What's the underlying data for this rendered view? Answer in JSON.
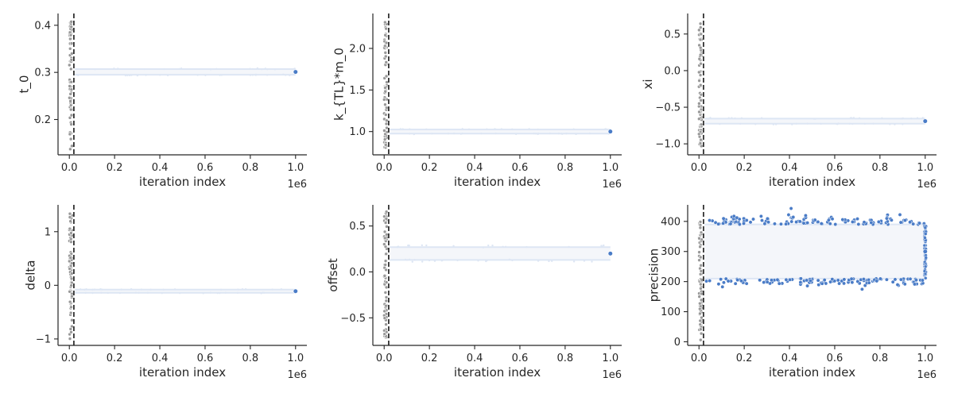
{
  "colors": {
    "chain": "#4a7cc7",
    "chain_light": "#dde6f4",
    "chain_fill": "#f4f6fa",
    "burnin": "#999999",
    "cutoff_line": "#1a1a1a",
    "axis": "#262626"
  },
  "chart_data": [
    {
      "type": "scatter",
      "xlabel": "iteration index",
      "ylabel": "t_0",
      "x_offset_label": "1e6",
      "xlim": [
        -0.05,
        1.05
      ],
      "ylim": [
        0.125,
        0.425
      ],
      "xticks": [
        0.0,
        0.2,
        0.4,
        0.6,
        0.8,
        1.0
      ],
      "xtick_labels": [
        "0.0",
        "0.2",
        "0.4",
        "0.6",
        "0.8",
        "1.0"
      ],
      "yticks": [
        0.2,
        0.3,
        0.4
      ],
      "ytick_labels": [
        "0.2",
        "0.3",
        "0.4"
      ],
      "burnin_cutoff": 0.02,
      "burnin_range": [
        0.135,
        0.41
      ],
      "chain_center": 0.301,
      "chain_halfwidth": 0.006,
      "chain_outliers": [
        0.293,
        0.309
      ],
      "last_point": 0.301
    },
    {
      "type": "scatter",
      "xlabel": "iteration index",
      "ylabel": "k_{TL}*m_0",
      "x_offset_label": "1e6",
      "xlim": [
        -0.05,
        1.05
      ],
      "ylim": [
        0.72,
        2.42
      ],
      "xticks": [
        0.0,
        0.2,
        0.4,
        0.6,
        0.8,
        1.0
      ],
      "xtick_labels": [
        "0.0",
        "0.2",
        "0.4",
        "0.6",
        "0.8",
        "1.0"
      ],
      "yticks": [
        1.0,
        1.5,
        2.0
      ],
      "ytick_labels": [
        "1.0",
        "1.5",
        "2.0"
      ],
      "burnin_cutoff": 0.02,
      "burnin_range": [
        0.8,
        2.35
      ],
      "chain_center": 1.0,
      "chain_halfwidth": 0.025,
      "chain_outliers": [
        0.97,
        1.03
      ],
      "last_point": 1.0
    },
    {
      "type": "scatter",
      "xlabel": "iteration index",
      "ylabel": "xi",
      "x_offset_label": "1e6",
      "xlim": [
        -0.05,
        1.05
      ],
      "ylim": [
        -1.15,
        0.78
      ],
      "xticks": [
        0.0,
        0.2,
        0.4,
        0.6,
        0.8,
        1.0
      ],
      "xtick_labels": [
        "0.0",
        "0.2",
        "0.4",
        "0.6",
        "0.8",
        "1.0"
      ],
      "yticks": [
        -1.0,
        -0.5,
        0.0,
        0.5
      ],
      "ytick_labels": [
        "−1.0",
        "−0.5",
        "0.0",
        "0.5"
      ],
      "burnin_cutoff": 0.02,
      "burnin_range": [
        -1.05,
        0.7
      ],
      "chain_center": -0.69,
      "chain_halfwidth": 0.035,
      "chain_outliers": [
        -0.73,
        -0.65
      ],
      "last_point": -0.69
    },
    {
      "type": "scatter",
      "xlabel": "iteration index",
      "ylabel": "delta",
      "x_offset_label": "1e6",
      "xlim": [
        -0.05,
        1.05
      ],
      "ylim": [
        -1.12,
        1.5
      ],
      "xticks": [
        0.0,
        0.2,
        0.4,
        0.6,
        0.8,
        1.0
      ],
      "xtick_labels": [
        "0.0",
        "0.2",
        "0.4",
        "0.6",
        "0.8",
        "1.0"
      ],
      "yticks": [
        -1,
        0,
        1
      ],
      "ytick_labels": [
        "−1",
        "0",
        "1"
      ],
      "burnin_cutoff": 0.02,
      "burnin_range": [
        -1.0,
        1.4
      ],
      "chain_center": -0.11,
      "chain_halfwidth": 0.03,
      "chain_outliers": [
        -0.15,
        -0.07
      ],
      "last_point": -0.11
    },
    {
      "type": "scatter",
      "xlabel": "iteration index",
      "ylabel": "offset",
      "x_offset_label": "1e6",
      "xlim": [
        -0.05,
        1.05
      ],
      "ylim": [
        -0.8,
        0.73
      ],
      "xticks": [
        0.0,
        0.2,
        0.4,
        0.6,
        0.8,
        1.0
      ],
      "xtick_labels": [
        "0.0",
        "0.2",
        "0.4",
        "0.6",
        "0.8",
        "1.0"
      ],
      "yticks": [
        -0.5,
        0.0,
        0.5
      ],
      "ytick_labels": [
        "−0.5",
        "0.0",
        "0.5"
      ],
      "burnin_cutoff": 0.02,
      "burnin_range": [
        -0.72,
        0.68
      ],
      "chain_center": 0.2,
      "chain_halfwidth": 0.07,
      "chain_outliers": [
        0.12,
        0.29
      ],
      "last_point": 0.2
    },
    {
      "type": "scatter",
      "xlabel": "iteration index",
      "ylabel": "precision",
      "x_offset_label": "1e6",
      "xlim": [
        -0.05,
        1.05
      ],
      "ylim": [
        -12,
        455
      ],
      "xticks": [
        0.0,
        0.2,
        0.4,
        0.6,
        0.8,
        1.0
      ],
      "xtick_labels": [
        "0.0",
        "0.2",
        "0.4",
        "0.6",
        "0.8",
        "1.0"
      ],
      "yticks": [
        0,
        100,
        200,
        300,
        400
      ],
      "ytick_labels": [
        "0",
        "100",
        "200",
        "300",
        "400"
      ],
      "burnin_cutoff": 0.02,
      "burnin_range": [
        5,
        400
      ],
      "chain_center": 300,
      "chain_halfwidth": 90,
      "chain_outliers": [
        200,
        435
      ],
      "last_point": 300
    }
  ]
}
